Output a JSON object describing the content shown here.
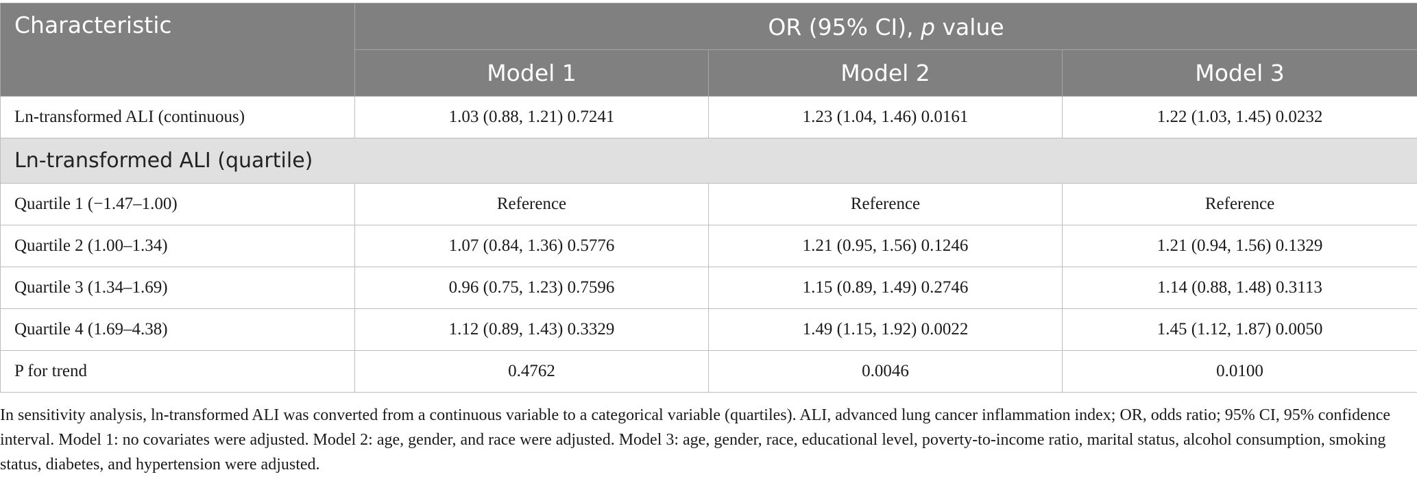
{
  "header": {
    "characteristic": "Characteristic",
    "group_prefix": "OR (95% CI), ",
    "group_italic": "p",
    "group_suffix": " value",
    "models": [
      "Model 1",
      "Model 2",
      "Model 3"
    ]
  },
  "rows": [
    {
      "label": "Ln-transformed ALI (continuous)",
      "values": [
        "1.03 (0.88, 1.21) 0.7241",
        "1.23 (1.04, 1.46) 0.0161",
        "1.22 (1.03, 1.45) 0.0232"
      ]
    }
  ],
  "section": {
    "label": "Ln-transformed ALI (quartile)"
  },
  "quartile_rows": [
    {
      "label": "Quartile 1 (−1.47–1.00)",
      "values": [
        "Reference",
        "Reference",
        "Reference"
      ]
    },
    {
      "label": "Quartile 2 (1.00–1.34)",
      "values": [
        "1.07 (0.84, 1.36) 0.5776",
        "1.21 (0.95, 1.56) 0.1246",
        "1.21 (0.94, 1.56) 0.1329"
      ]
    },
    {
      "label": "Quartile 3 (1.34–1.69)",
      "values": [
        "0.96 (0.75, 1.23) 0.7596",
        "1.15 (0.89, 1.49) 0.2746",
        "1.14 (0.88, 1.48) 0.3113"
      ]
    },
    {
      "label": "Quartile 4 (1.69–4.38)",
      "values": [
        "1.12 (0.89, 1.43) 0.3329",
        "1.49 (1.15, 1.92) 0.0022",
        "1.45 (1.12, 1.87) 0.0050"
      ]
    },
    {
      "label": "P for trend",
      "values": [
        "0.4762",
        "0.0046",
        "0.0100"
      ]
    }
  ],
  "footnote": "In sensitivity analysis, ln-transformed ALI was converted from a continuous variable to a categorical variable (quartiles). ALI, advanced lung cancer inflammation index; OR, odds ratio; 95% CI, 95% confidence interval. Model 1: no covariates were adjusted. Model 2: age, gender, and race were adjusted. Model 3: age, gender, race, educational level, poverty-to-income ratio, marital status, alcohol consumption, smoking status, diabetes, and hypertension were adjusted.",
  "colors": {
    "header_bg": "#808080",
    "header_text": "#ffffff",
    "section_bg": "#e0e0e0",
    "border": "#bdbdbd"
  }
}
